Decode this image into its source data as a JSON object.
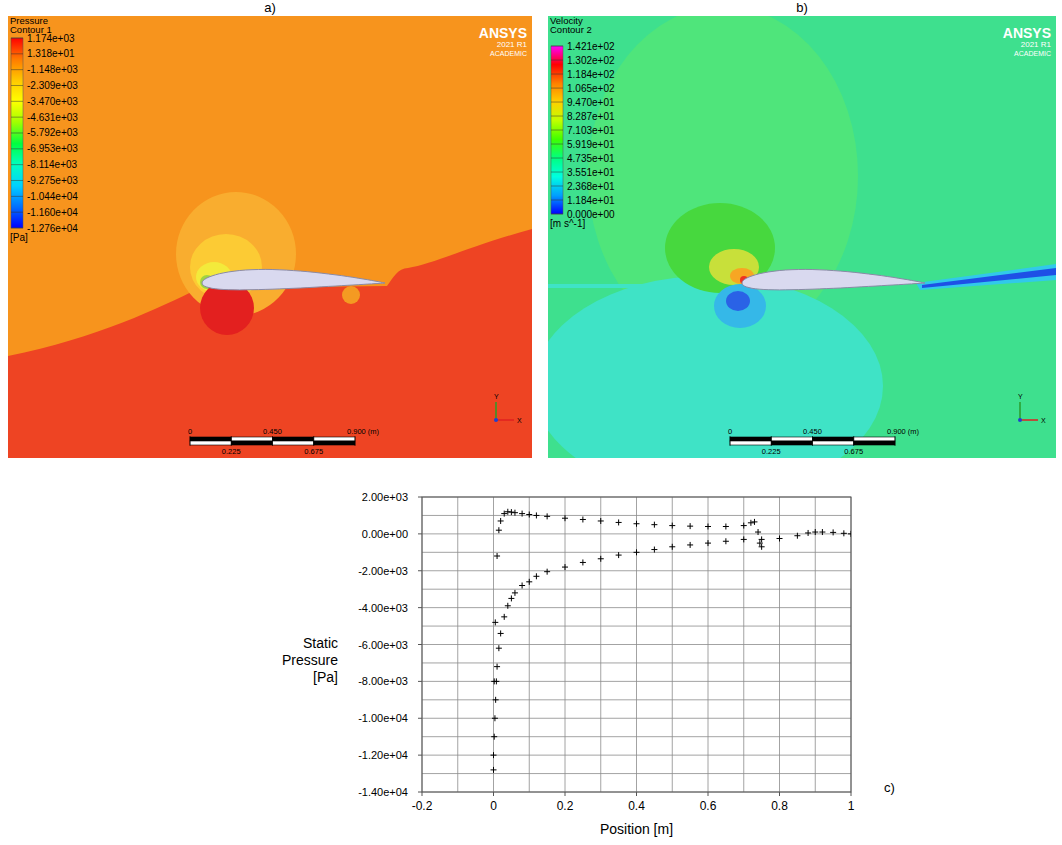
{
  "chart_data": [
    {
      "type": "contour",
      "panel_label": "a)",
      "title": "Pressure",
      "subtitle": "Contour 1",
      "colorbar": {
        "range": [
          -12760,
          1174
        ],
        "ticks": [
          {
            "value": 1174,
            "label": "1.174e+03"
          },
          {
            "value": 13.18,
            "label": "1.318e+01"
          },
          {
            "value": -1148,
            "label": "-1.148e+03"
          },
          {
            "value": -2309,
            "label": "-2.309e+03"
          },
          {
            "value": -3470,
            "label": "-3.470e+03"
          },
          {
            "value": -4631,
            "label": "-4.631e+03"
          },
          {
            "value": -5792,
            "label": "-5.792e+03"
          },
          {
            "value": -6953,
            "label": "-6.953e+03"
          },
          {
            "value": -8114,
            "label": "-8.114e+03"
          },
          {
            "value": -9275,
            "label": "-9.275e+03"
          },
          {
            "value": -10440,
            "label": "-1.044e+04"
          },
          {
            "value": -11600,
            "label": "-1.160e+04"
          },
          {
            "value": -12760,
            "label": "-1.276e+04"
          }
        ],
        "unit": "[Pa]",
        "colors": [
          "#ff0000",
          "#ff7a00",
          "#ffc800",
          "#ffff00",
          "#a0ff00",
          "#00ff40",
          "#00ffc0",
          "#00d0ff",
          "#0070ff",
          "#0000ff"
        ]
      },
      "annotations": [
        "ANSYS",
        "2021 R1",
        "ACADEMIC"
      ],
      "scale_bar": {
        "range": [
          0,
          0.9
        ],
        "ticks": [
          0,
          {
            "value": 0.225,
            "label": "0.225"
          },
          {
            "value": 0.45,
            "label": "0.450"
          },
          {
            "value": 0.675,
            "label": "0.675"
          },
          {
            "value": 0.9,
            "label": "0.900"
          }
        ],
        "unit": "(m)"
      },
      "xlabel": "X",
      "ylabel": "Y"
    },
    {
      "type": "contour",
      "panel_label": "b)",
      "title": "Velocity",
      "subtitle": "Contour 2",
      "colorbar": {
        "range": [
          0,
          142.1
        ],
        "ticks": [
          {
            "value": 142.1,
            "label": "1.421e+02"
          },
          {
            "value": 130.2,
            "label": "1.302e+02"
          },
          {
            "value": 118.4,
            "label": "1.184e+02"
          },
          {
            "value": 106.5,
            "label": "1.065e+02"
          },
          {
            "value": 94.7,
            "label": "9.470e+01"
          },
          {
            "value": 82.87,
            "label": "8.287e+01"
          },
          {
            "value": 71.03,
            "label": "7.103e+01"
          },
          {
            "value": 59.19,
            "label": "5.919e+01"
          },
          {
            "value": 47.35,
            "label": "4.735e+01"
          },
          {
            "value": 35.51,
            "label": "3.551e+01"
          },
          {
            "value": 23.68,
            "label": "2.368e+01"
          },
          {
            "value": 11.84,
            "label": "1.184e+01"
          },
          {
            "value": 0,
            "label": "0.000e+00"
          }
        ],
        "unit": "[m s^-1]",
        "colors": [
          "#ff00ff",
          "#ff0000",
          "#ff8000",
          "#ffd000",
          "#c0ff00",
          "#40ff00",
          "#00ff80",
          "#00ffe0",
          "#00a0ff",
          "#0000ff"
        ]
      },
      "annotations": [
        "ANSYS",
        "2021 R1",
        "ACADEMIC"
      ],
      "scale_bar": {
        "range": [
          0,
          0.9
        ],
        "ticks": [
          0,
          {
            "value": 0.225,
            "label": "0.225"
          },
          {
            "value": 0.45,
            "label": "0.450"
          },
          {
            "value": 0.675,
            "label": "0.675"
          },
          {
            "value": 0.9,
            "label": "0.900"
          }
        ],
        "unit": "(m)"
      },
      "xlabel": "X",
      "ylabel": "Y"
    },
    {
      "type": "scatter",
      "panel_label": "c)",
      "xlabel": "Position [m]",
      "ylabel": "Static Pressure [Pa]",
      "xlim": [
        -0.2,
        1
      ],
      "ylim": [
        -14000,
        2000
      ],
      "xticks": [
        -0.2,
        0,
        0.2,
        0.4,
        0.6,
        0.8,
        1
      ],
      "yticks": [
        {
          "value": 2000,
          "label": "2.00e+03"
        },
        {
          "value": 0,
          "label": "0.00e+00"
        },
        {
          "value": -2000,
          "label": "-2.00e+03"
        },
        {
          "value": -4000,
          "label": "-4.00e+03"
        },
        {
          "value": -6000,
          "label": "-6.00e+03"
        },
        {
          "value": -8000,
          "label": "-8.00e+03"
        },
        {
          "value": -10000,
          "label": "-1.00e+04"
        },
        {
          "value": -12000,
          "label": "-1.20e+04"
        },
        {
          "value": -14000,
          "label": "-1.40e+04"
        }
      ],
      "grid": true,
      "marker": "plus",
      "series": [
        {
          "color": "#000000",
          "x": [
            0,
            0.002,
            0.005,
            0.01,
            0.015,
            0.02,
            0.03,
            0.04,
            0.05,
            0.06,
            0.08,
            0.1,
            0.12,
            0.15,
            0.2,
            0.25,
            0.3,
            0.35,
            0.4,
            0.45,
            0.5,
            0.55,
            0.6,
            0.65,
            0.7,
            0.72,
            0.73,
            0.74,
            0.745,
            0.75
          ],
          "values": [
            -12000,
            -8000,
            -4800,
            -1200,
            200,
            700,
            1100,
            1200,
            1180,
            1150,
            1100,
            1050,
            1000,
            950,
            850,
            780,
            700,
            620,
            550,
            500,
            450,
            420,
            400,
            400,
            450,
            600,
            650,
            100,
            -500,
            -700
          ]
        },
        {
          "color": "#000000",
          "x": [
            0,
            0.002,
            0.004,
            0.006,
            0.008,
            0.01,
            0.015,
            0.02,
            0.03,
            0.04,
            0.05,
            0.06,
            0.08,
            0.1,
            0.12,
            0.15,
            0.2,
            0.25,
            0.3,
            0.35,
            0.4,
            0.45,
            0.5,
            0.55,
            0.6,
            0.65,
            0.7,
            0.75,
            0.8,
            0.85,
            0.88,
            0.9,
            0.92,
            0.95,
            0.98,
            1
          ],
          "values": [
            -12800,
            -11000,
            -10000,
            -9000,
            -8000,
            -7200,
            -6200,
            -5400,
            -4500,
            -3900,
            -3500,
            -3200,
            -2800,
            -2600,
            -2300,
            -2050,
            -1800,
            -1550,
            -1350,
            -1150,
            -1000,
            -850,
            -700,
            -600,
            -500,
            -400,
            -300,
            -300,
            -250,
            -100,
            50,
            100,
            100,
            80,
            30,
            0
          ]
        }
      ]
    }
  ]
}
